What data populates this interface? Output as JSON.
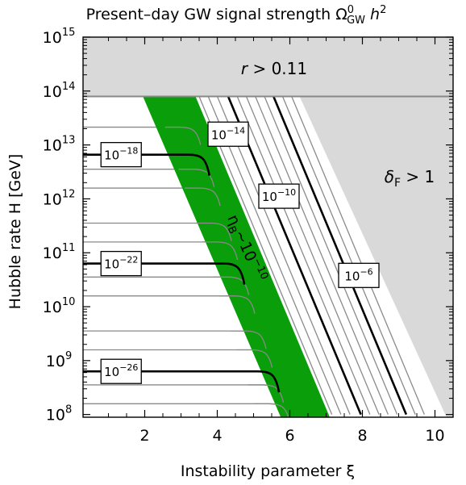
{
  "chart_data": {
    "type": "line",
    "title": "Present–day GW signal strength Ω",
    "title_super": "0",
    "title_sub": "GW",
    "title_tail": " h",
    "title_tail_super": "2",
    "xlabel": "Instability parameter ξ",
    "ylabel": "Hubble rate  H [GeV]",
    "xlim": [
      0.3,
      10.5
    ],
    "ylim_log10": [
      7.95,
      15.0
    ],
    "x_ticks": [
      "2",
      "4",
      "6",
      "8",
      "10"
    ],
    "x_tick_values": [
      2,
      4,
      6,
      8,
      10
    ],
    "y_ticks": [
      {
        "base": "10",
        "exp": "8",
        "log10": 8
      },
      {
        "base": "10",
        "exp": "9",
        "log10": 9
      },
      {
        "base": "10",
        "exp": "10",
        "log10": 10
      },
      {
        "base": "10",
        "exp": "11",
        "log10": 11
      },
      {
        "base": "10",
        "exp": "12",
        "log10": 12
      },
      {
        "base": "10",
        "exp": "13",
        "log10": 13
      },
      {
        "base": "10",
        "exp": "14",
        "log10": 14
      },
      {
        "base": "10",
        "exp": "15",
        "log10": 15
      }
    ],
    "regions": [
      {
        "label": "r > 0.11",
        "label_prefix": "r",
        "label_rest": " > 0.11",
        "ymin_log10": 13.9,
        "ymax_log10": 15.0
      },
      {
        "label_main": "δ",
        "label_sub": "F",
        "label_rest": " > 1",
        "boundary_xi_at_top": 6.25,
        "boundary_xi_at_bottom": 10.3
      }
    ],
    "band": {
      "label_main": "η",
      "label_sub": "B",
      "label_rest": "~10",
      "label_exp": "−10",
      "color": "#0a9e0a",
      "left_xi_at_top": 1.95,
      "left_xi_at_bottom": 5.75,
      "right_xi_at_top": 3.4,
      "right_xi_at_bottom": 7.1
    },
    "constraint_line": {
      "log10_H": 13.9,
      "color": "#888888"
    },
    "contour_labels": [
      {
        "exp": "−18",
        "xi": 1.35,
        "log10_H": 12.82
      },
      {
        "exp": "−22",
        "xi": 1.35,
        "log10_H": 10.8
      },
      {
        "exp": "−26",
        "xi": 1.35,
        "log10_H": 8.8
      },
      {
        "exp": "−14",
        "xi": 4.3,
        "log10_H": 13.2
      },
      {
        "exp": "−10",
        "xi": 5.7,
        "log10_H": 12.05
      },
      {
        "exp": "−6",
        "xi": 7.9,
        "log10_H": 10.58
      }
    ],
    "horizontal_contours": {
      "thin_log10_H": [
        13.33,
        12.55,
        12.2,
        11.55,
        11.2,
        10.55,
        10.2,
        9.55,
        9.2,
        8.55,
        8.2
      ],
      "bold_log10_H": [
        12.82,
        10.8,
        8.8
      ],
      "knee_xi_at_top": 3.45,
      "knee_xi_at_bottom": 5.9
    },
    "diagonal_contours": {
      "xi_at_top_thin": [
        3.5,
        3.75,
        4.0,
        4.55,
        4.8,
        5.05,
        5.3,
        5.8,
        6.05
      ],
      "xi_at_top_bold": [
        4.3,
        5.55
      ],
      "bold_extra": [
        {
          "xi_top": 3.9,
          "log10_top": 11.5,
          "xi_bottom": 6.55,
          "log10_bottom": 8.3
        }
      ],
      "slope_xi_per_decade": -0.62,
      "top_log10_H": 13.9,
      "bottom_log10_H": 8.0
    },
    "grid": false,
    "legend": "none"
  }
}
